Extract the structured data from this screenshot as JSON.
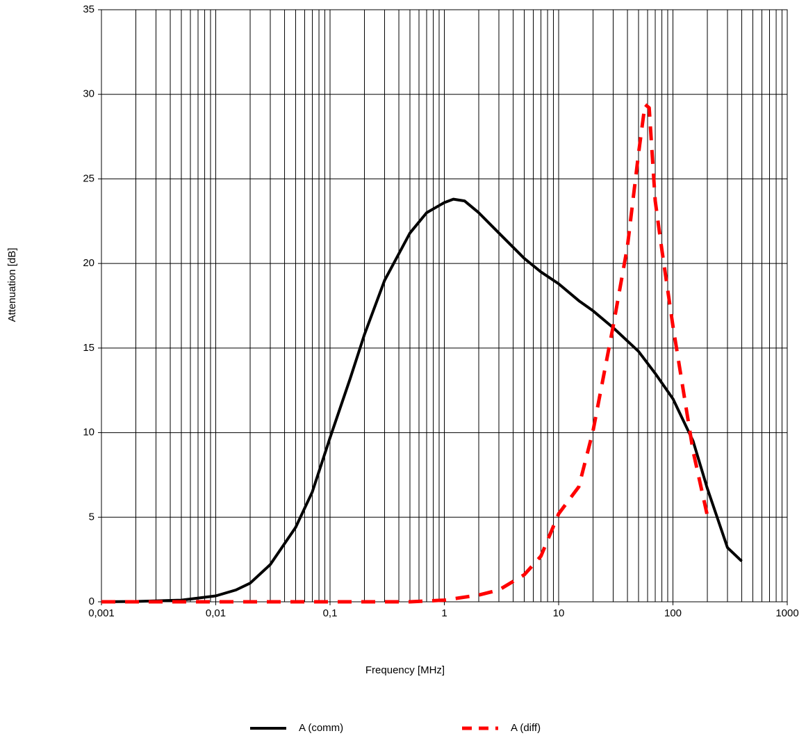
{
  "chart_data": {
    "type": "line",
    "x_label": "Frequency [MHz]",
    "y_label": "Attenuation [dB]",
    "xscale": "log",
    "grid": true,
    "xlim": [
      0.001,
      1000
    ],
    "ylim": [
      0,
      35
    ],
    "xticks": [
      {
        "value": 0.001,
        "label": "0,001"
      },
      {
        "value": 0.01,
        "label": "0,01"
      },
      {
        "value": 0.1,
        "label": "0,1"
      },
      1,
      10,
      100,
      1000
    ],
    "yticks": [
      0,
      5,
      10,
      15,
      20,
      25,
      30,
      35
    ],
    "series": [
      {
        "name": "A (comm)",
        "color": "#000000",
        "dash": false,
        "x": [
          0.001,
          0.002,
          0.005,
          0.01,
          0.015,
          0.02,
          0.03,
          0.05,
          0.07,
          0.1,
          0.15,
          0.2,
          0.3,
          0.5,
          0.7,
          1,
          1.2,
          1.5,
          2,
          3,
          5,
          7,
          10,
          15,
          20,
          30,
          50,
          70,
          100,
          150,
          200,
          300,
          400
        ],
        "values": [
          0,
          0.02,
          0.1,
          0.35,
          0.7,
          1.1,
          2.2,
          4.4,
          6.5,
          9.7,
          13.2,
          15.8,
          19.0,
          21.8,
          23.0,
          23.6,
          23.8,
          23.7,
          23.0,
          21.8,
          20.3,
          19.5,
          18.8,
          17.8,
          17.2,
          16.2,
          14.8,
          13.5,
          12.0,
          9.5,
          6.7,
          3.2,
          2.4
        ]
      },
      {
        "name": "A (diff)",
        "color": "#ff0000",
        "dash": true,
        "x": [
          0.001,
          0.01,
          0.1,
          0.5,
          1,
          2,
          3,
          5,
          7,
          10,
          15,
          20,
          30,
          40,
          50,
          57,
          62,
          70,
          80,
          100,
          150,
          200
        ],
        "values": [
          0,
          0,
          0,
          0,
          0.1,
          0.4,
          0.7,
          1.6,
          2.7,
          5.2,
          6.8,
          10.1,
          16.3,
          21,
          26.5,
          29.4,
          29.2,
          23.7,
          20.8,
          16.3,
          8.9,
          5.1
        ]
      }
    ]
  }
}
